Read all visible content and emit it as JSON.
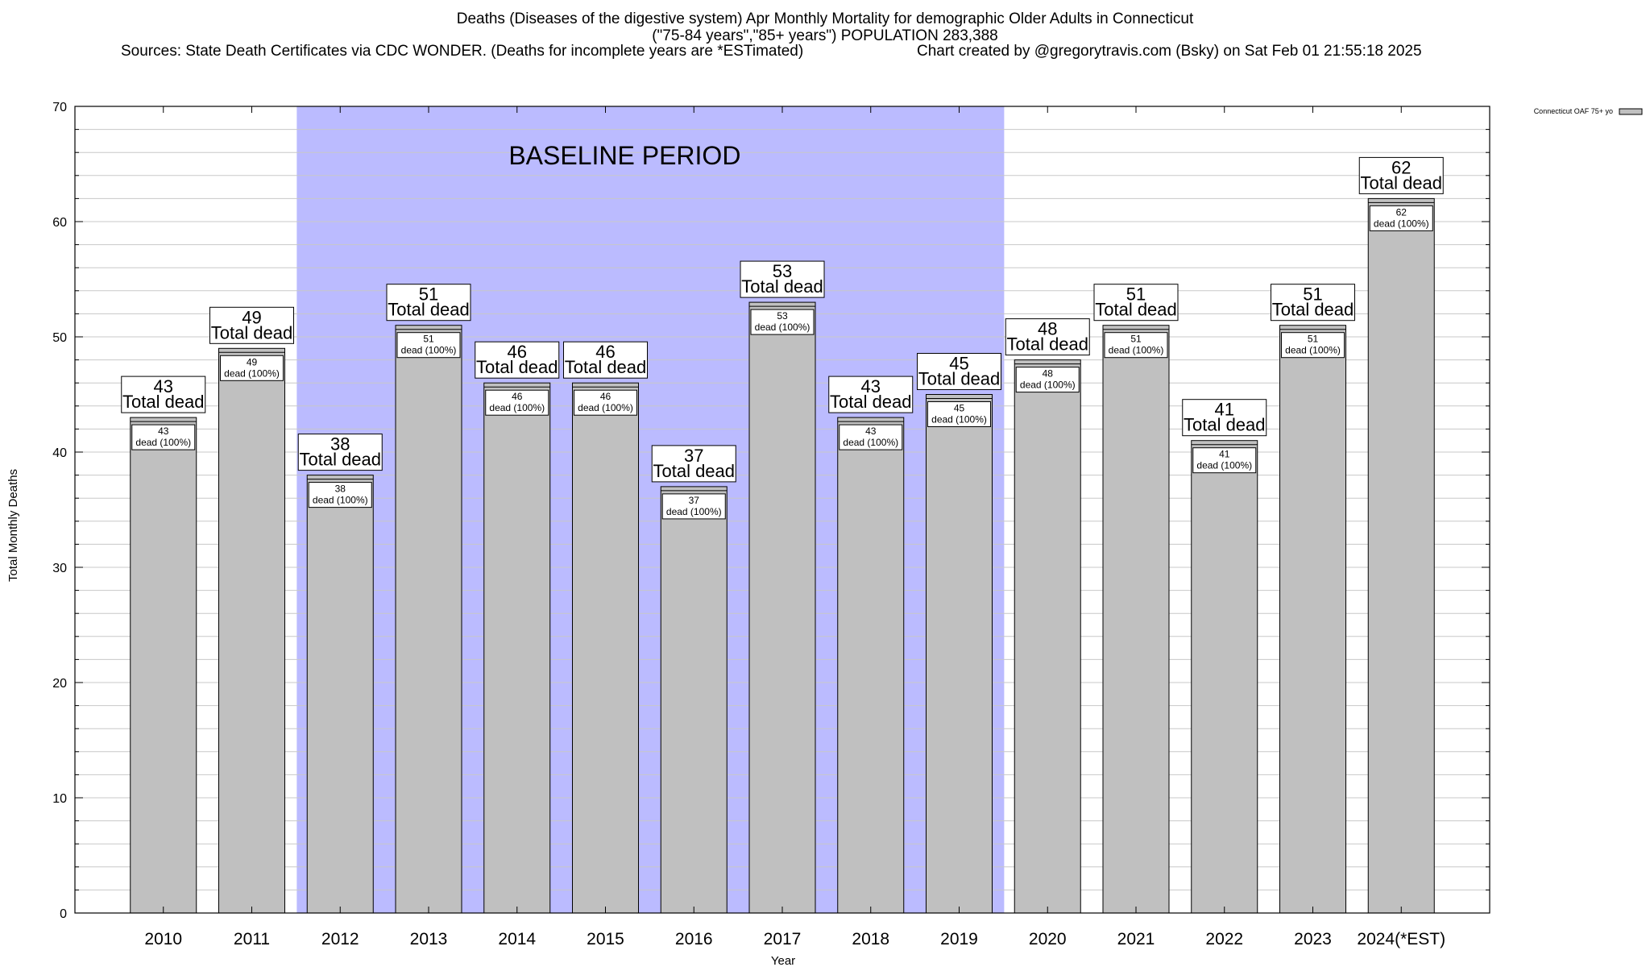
{
  "header": {
    "title_line1": "Deaths (Diseases of the digestive system) Apr Monthly Mortality for demographic Older Adults in Connecticut",
    "title_line2": "(\"75-84 years\",\"85+ years\") POPULATION 283,388",
    "sources": "Sources: State Death Certificates via CDC WONDER. (Deaths for incomplete years are *ESTimated)",
    "credit": "Chart created by @gregorytravis.com (Bsky) on Sat Feb 01 21:55:18 2025"
  },
  "chart_data": {
    "type": "bar",
    "categories": [
      "2010",
      "2011",
      "2012",
      "2013",
      "2014",
      "2015",
      "2016",
      "2017",
      "2018",
      "2019",
      "2020",
      "2021",
      "2022",
      "2023",
      "2024(*EST)"
    ],
    "series": [
      {
        "name": "Connecticut OAF 75+ yo",
        "values": [
          43,
          49,
          38,
          51,
          46,
          46,
          37,
          53,
          43,
          45,
          48,
          51,
          41,
          51,
          62
        ],
        "color": "#c0c0c0"
      }
    ],
    "total_label": "Total dead",
    "inner_label": "dead (100%)",
    "baseline_label": "BASELINE PERIOD",
    "baseline_range": [
      "2012",
      "2019"
    ],
    "baseline_color": "#bbbbff",
    "xlabel": "Year",
    "ylabel": "Total Monthly Deaths",
    "ylim": [
      0,
      70
    ],
    "yticks": [
      0,
      10,
      20,
      30,
      40,
      50,
      60,
      70
    ],
    "grid": true,
    "legend_position": "top-right"
  }
}
